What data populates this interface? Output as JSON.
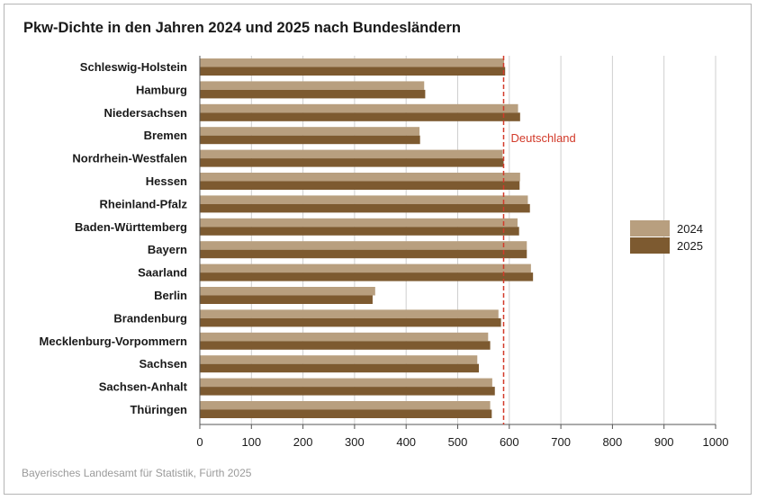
{
  "colors": {
    "series_2024": "#b89f7f",
    "series_2025": "#7d5a30",
    "reference": "#d23a2a",
    "grid": "#cfcfcf",
    "axis": "#555555"
  },
  "chart_data": {
    "type": "bar",
    "orientation": "horizontal",
    "title": "Pkw-Dichte in den Jahren 2024 und 2025 nach Bundesländern",
    "source": "Bayerisches Landesamt für Statistik, Fürth 2025",
    "xlim": [
      0,
      1000
    ],
    "xticks": [
      "0",
      "100",
      "200",
      "300",
      "400",
      "500",
      "600",
      "700",
      "800",
      "900",
      "1000"
    ],
    "xtick_values": [
      0,
      100,
      200,
      300,
      400,
      500,
      600,
      700,
      800,
      900,
      1000
    ],
    "grid": true,
    "legend_position": "right",
    "categories": [
      "Schleswig-Holstein",
      "Hamburg",
      "Niedersachsen",
      "Bremen",
      "Nordrhein-Westfalen",
      "Hessen",
      "Rheinland-Pfalz",
      "Baden-Württemberg",
      "Bayern",
      "Saarland",
      "Berlin",
      "Brandenburg",
      "Mecklenburg-Vorpommern",
      "Sachsen",
      "Sachsen-Anhalt",
      "Thüringen"
    ],
    "series": [
      {
        "name": "2024",
        "values": [
          590,
          435,
          617,
          426,
          587,
          621,
          636,
          616,
          634,
          642,
          340,
          579,
          559,
          538,
          567,
          563
        ]
      },
      {
        "name": "2025",
        "values": [
          592,
          437,
          621,
          427,
          589,
          620,
          640,
          619,
          634,
          646,
          335,
          584,
          563,
          541,
          572,
          566
        ]
      }
    ],
    "reference_line": {
      "label": "Deutschland",
      "value": 589
    }
  }
}
